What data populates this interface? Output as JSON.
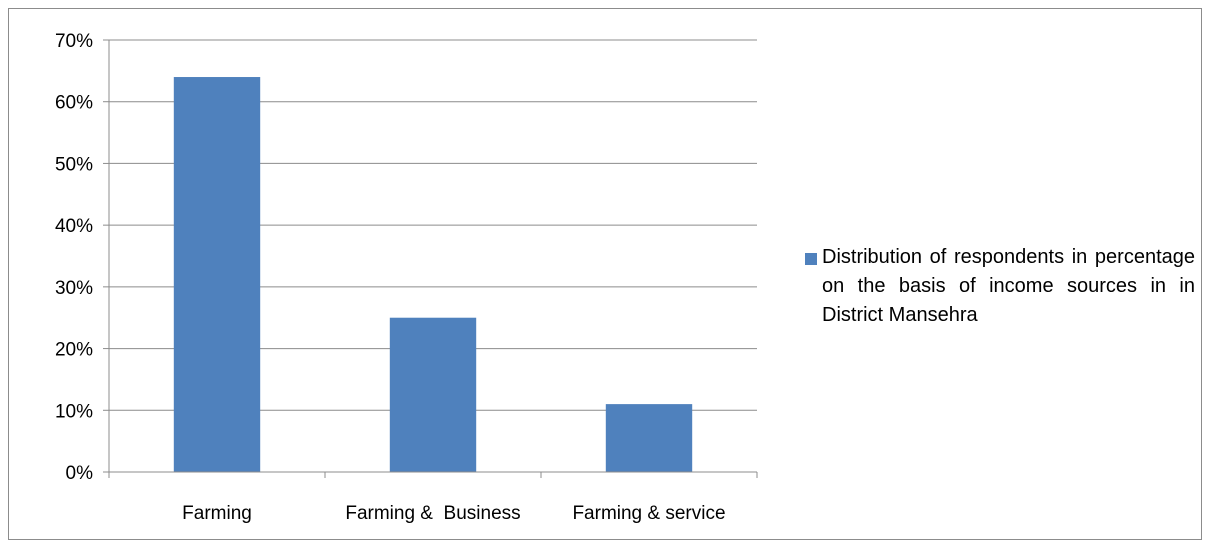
{
  "chart_data": {
    "type": "bar",
    "title": "",
    "xlabel": "",
    "ylabel": "",
    "categories": [
      "Farming",
      "Farming &  Business",
      "Farming & service"
    ],
    "series": [
      {
        "name": "Distribution of respondents in percentage on the basis of income sources in in District Mansehra",
        "values": [
          64,
          25,
          11
        ],
        "color": "#4F81BD"
      }
    ],
    "ylim": [
      0,
      70
    ],
    "yticks": [
      0,
      10,
      20,
      30,
      40,
      50,
      60,
      70
    ],
    "ytick_labels": [
      "0%",
      "10%",
      "20%",
      "30%",
      "40%",
      "50%",
      "60%",
      "70%"
    ],
    "grid": true,
    "legend_position": "right"
  }
}
